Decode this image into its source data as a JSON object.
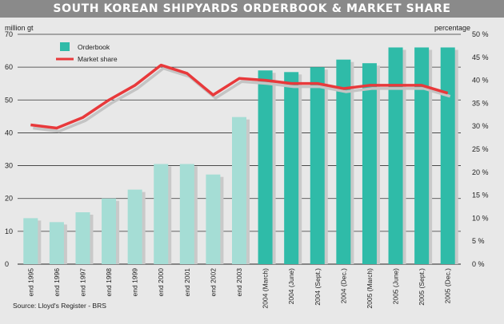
{
  "title": "SOUTH KOREAN SHIPYARDS ORDERBOOK & MARKET SHARE",
  "source": "Source: Lloyd's Register - BRS",
  "colors": {
    "background": "#e8e8e8",
    "title_bar": "#8a8a8a",
    "bar_early": "#a5ddd5",
    "bar_recent": "#2fbba8",
    "bar_shadow": "#c9c9c9",
    "line": "#e8393b",
    "line_shadow": "#c4c4c4"
  },
  "chart_data": {
    "type": "bar",
    "left_axis_unit": "million gt",
    "right_axis_unit": "percentage",
    "ylim": [
      0,
      70
    ],
    "y2lim": [
      0,
      50
    ],
    "yticks": [
      "0",
      "10",
      "20",
      "30",
      "40",
      "50",
      "60",
      "70"
    ],
    "y2ticks": [
      "0 %",
      "5 %",
      "10 %",
      "15 %",
      "20 %",
      "25 %",
      "30 %",
      "35 %",
      "40 %",
      "45 %",
      "50 %"
    ],
    "grid": true,
    "legend_position": "top-left",
    "categories": [
      "end 1995",
      "end 1996",
      "end 1997",
      "end 1998",
      "end 1999",
      "end 2000",
      "end 2001",
      "end 2002",
      "end 2003",
      "2004 (March)",
      "2004 (June)",
      "2004 (Sept.)",
      "2004 (Dec.)",
      "2005 (March)",
      "2005 (June)",
      "2005 (Sept.)",
      "2005 (Dec.)"
    ],
    "series": [
      {
        "name": "Orderbook",
        "type": "bar",
        "axis": "left",
        "values": [
          14,
          12.8,
          15.8,
          20,
          22.7,
          30.5,
          30.5,
          27.3,
          44.8,
          59,
          58.5,
          60,
          62.3,
          61.2,
          66,
          66,
          66
        ]
      },
      {
        "name": "Market share",
        "type": "line",
        "axis": "right",
        "values": [
          30.3,
          29.6,
          31.9,
          35.7,
          38.9,
          43.3,
          41.5,
          36.8,
          40.4,
          40,
          39.3,
          39.3,
          38.2,
          38.9,
          38.9,
          38.9,
          37.2
        ]
      }
    ]
  }
}
